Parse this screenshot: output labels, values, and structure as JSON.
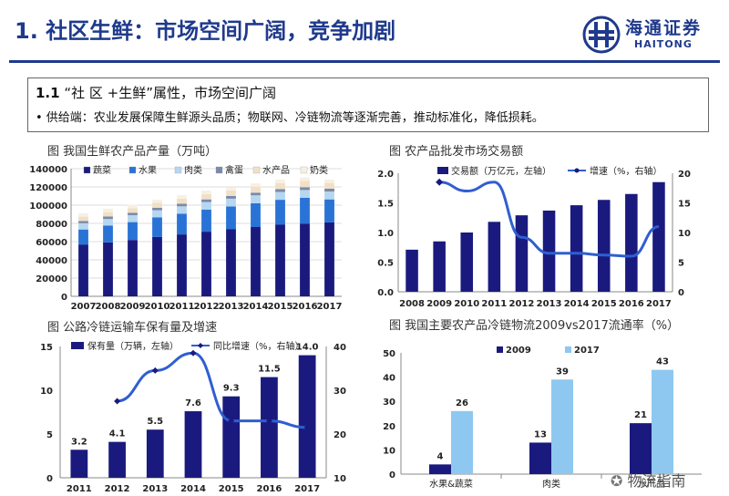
{
  "header": {
    "title": "1. 社区生鲜：市场空间广阔，竞争加剧",
    "logo_cn": "海通证券",
    "logo_en": "HAITONG"
  },
  "section": {
    "heading_num": "1.1",
    "heading_text": "“社 区 +生鲜”属性，市场空间广阔",
    "bullet": "•  供给端：农业发展保障生鲜源头品质；物联网、冷链物流等逐渐完善，推动标准化，降低损耗。"
  },
  "watermark": "物流指南",
  "colors": {
    "navy": "#1a1a7e",
    "light_blue": "#8ec8f0",
    "line_blue": "#2f5fd0"
  },
  "chart_data": [
    {
      "type": "bar",
      "stacked": true,
      "title": "图 我国生鲜农产品产量（万吨）",
      "categories": [
        "2007",
        "2008",
        "2009",
        "2010",
        "2011",
        "2012",
        "2013",
        "2014",
        "2015",
        "2016",
        "2017"
      ],
      "ylim": [
        0,
        140000
      ],
      "yticks": [
        0,
        20000,
        40000,
        60000,
        80000,
        100000,
        120000,
        140000
      ],
      "legend": [
        "蔬菜",
        "水果",
        "肉类",
        "禽蛋",
        "水产品",
        "奶类"
      ],
      "series": [
        {
          "name": "蔬菜",
          "color": "#1a1a7e",
          "values": [
            56500,
            59200,
            61800,
            65100,
            67900,
            70900,
            73500,
            76000,
            78500,
            79800,
            81100
          ]
        },
        {
          "name": "水果",
          "color": "#2a73d6",
          "values": [
            16800,
            18300,
            19600,
            21400,
            22800,
            24100,
            25100,
            26100,
            27400,
            28300,
            25200
          ]
        },
        {
          "name": "肉类",
          "color": "#b6d6f1",
          "values": [
            6900,
            7300,
            7600,
            7900,
            8000,
            8400,
            8500,
            8700,
            8600,
            8500,
            8600
          ]
        },
        {
          "name": "禽蛋",
          "color": "#7a8aa8",
          "values": [
            2500,
            2700,
            2700,
            2800,
            2800,
            2900,
            2900,
            2900,
            3000,
            3100,
            3100
          ]
        },
        {
          "name": "水产品",
          "color": "#f0e0c8",
          "values": [
            4700,
            4900,
            5100,
            5300,
            5600,
            5900,
            6200,
            6500,
            6700,
            6900,
            6400
          ]
        },
        {
          "name": "奶类",
          "color": "#f7f0e2",
          "values": [
            3600,
            3700,
            3600,
            3600,
            3700,
            3800,
            3500,
            3700,
            3800,
            3700,
            3600
          ]
        }
      ]
    },
    {
      "type": "bar+line",
      "title": "图  农产品批发市场交易额",
      "categories": [
        "2008",
        "2009",
        "2010",
        "2011",
        "2012",
        "2013",
        "2014",
        "2015",
        "2016",
        "2017"
      ],
      "ylim_left": [
        0,
        2.0
      ],
      "yticks_left": [
        "0.0",
        "0.5",
        "1.0",
        "1.5",
        "2.0"
      ],
      "ylim_right": [
        0,
        20
      ],
      "yticks_right": [
        "0",
        "5",
        "10",
        "15",
        "20"
      ],
      "series": [
        {
          "name": "交易额（万亿元，左轴）",
          "type": "bar",
          "axis": "left",
          "values": [
            0.71,
            0.85,
            1.0,
            1.18,
            1.29,
            1.37,
            1.46,
            1.55,
            1.65,
            1.85
          ]
        },
        {
          "name": "增速（%，右轴）",
          "type": "line",
          "axis": "right",
          "x": [
            "2009",
            "2010",
            "2011",
            "2012",
            "2013",
            "2014",
            "2015",
            "2016",
            "2017"
          ],
          "values": [
            18.5,
            17.0,
            18.5,
            9.2,
            6.5,
            6.5,
            6.2,
            6.0,
            11.0
          ]
        }
      ]
    },
    {
      "type": "bar+line",
      "title": "图   公路冷链运输车保有量及增速",
      "categories": [
        "2011",
        "2012",
        "2013",
        "2014",
        "2015",
        "2016",
        "2017"
      ],
      "ylim_left": [
        0,
        15
      ],
      "yticks_left": [
        "0",
        "5",
        "10",
        "15"
      ],
      "ylim_right": [
        10,
        40
      ],
      "yticks_right": [
        "10",
        "20",
        "30",
        "40"
      ],
      "series": [
        {
          "name": "保有量（万辆，左轴）",
          "type": "bar",
          "axis": "left",
          "values": [
            3.2,
            4.1,
            5.5,
            7.6,
            9.3,
            11.5,
            14.0
          ],
          "labels": [
            "3.2",
            "4.1",
            "5.5",
            "7.6",
            "9.3",
            "11.5",
            "14.0"
          ]
        },
        {
          "name": "同比增速（%，右轴）",
          "type": "line",
          "axis": "right",
          "x": [
            "2012",
            "2013",
            "2014",
            "2015",
            "2016",
            "2017"
          ],
          "values": [
            27.5,
            34.5,
            38.5,
            23.0,
            23.0,
            21.5
          ]
        }
      ]
    },
    {
      "type": "bar",
      "title": "图  我国主要农产品冷链物流2009vs2017流通率（%）",
      "categories": [
        "水果&蔬菜",
        "肉类",
        "水产品"
      ],
      "ylim": [
        0,
        50
      ],
      "yticks": [
        "0",
        "10",
        "20",
        "30",
        "40",
        "50"
      ],
      "series": [
        {
          "name": "2009",
          "values": [
            4,
            13,
            21
          ],
          "labels": [
            "4",
            "13",
            "21"
          ]
        },
        {
          "name": "2017",
          "values": [
            26,
            39,
            43
          ],
          "labels": [
            "26",
            "39",
            "43"
          ]
        }
      ]
    }
  ]
}
